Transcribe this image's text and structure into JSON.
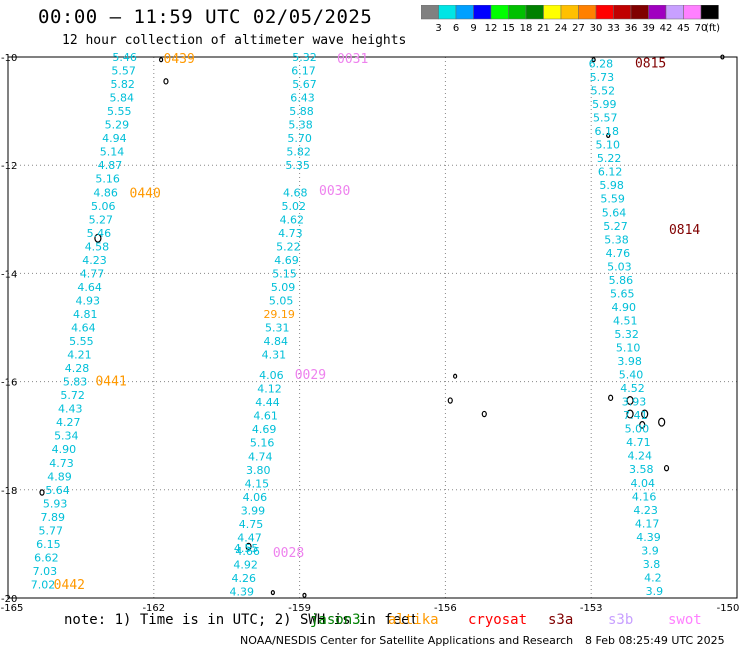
{
  "header": {
    "title": "00:00 – 11:59 UTC 02/05/2025",
    "subtitle": "12 hour collection of altimeter wave heights"
  },
  "legend": {
    "labels": [
      "3",
      "6",
      "9",
      "12",
      "15",
      "18",
      "21",
      "24",
      "27",
      "30",
      "33",
      "36",
      "39",
      "42",
      "45",
      "70"
    ],
    "unit": "(ft)",
    "colors": [
      "#808080",
      "#00e5e5",
      "#00a0ff",
      "#0000ff",
      "#00ff00",
      "#00c000",
      "#008000",
      "#ffff00",
      "#ffc000",
      "#ff8000",
      "#ff0000",
      "#c00000",
      "#800000",
      "#a000c0",
      "#c8a0ff",
      "#ff80ff",
      "#000000"
    ]
  },
  "map": {
    "lon_ticks": [
      "-165",
      "-162",
      "-159",
      "-156",
      "-153",
      "-150"
    ],
    "lat_ticks": [
      "-10",
      "-12",
      "-14",
      "-16",
      "-18",
      "-20"
    ]
  },
  "tracks": [
    {
      "name": "track-0439",
      "label": "0439",
      "color": "#ff9900",
      "label_pos": [
        -161.8,
        -10.02
      ],
      "points": [
        [
          -162.6,
          -10.0,
          "5.46"
        ],
        [
          -162.62,
          -10.25,
          "5.57"
        ],
        [
          -162.64,
          -10.5,
          "5.82"
        ],
        [
          -162.66,
          -10.75,
          "5.84"
        ],
        [
          -162.71,
          -11.0,
          "5.55"
        ],
        [
          -162.76,
          -11.25,
          "5.29"
        ],
        [
          -162.81,
          -11.5,
          "4.94"
        ],
        [
          -162.86,
          -11.75,
          "5.14"
        ],
        [
          -162.9,
          -12.0,
          "4.87"
        ],
        [
          -162.95,
          -12.25,
          "5.16"
        ],
        [
          -162.99,
          -12.5,
          "4.86"
        ]
      ]
    },
    {
      "name": "track-0440",
      "label": "0440",
      "color": "#ff9900",
      "label_pos": [
        -162.5,
        -12.5
      ],
      "points": [
        [
          -163.04,
          -12.75,
          "5.06"
        ],
        [
          -163.09,
          -13.0,
          "5.27"
        ],
        [
          -163.13,
          -13.25,
          "5.46"
        ],
        [
          -163.17,
          -13.5,
          "4.58"
        ],
        [
          -163.22,
          -13.75,
          "4.23"
        ],
        [
          -163.27,
          -14.0,
          "4.77"
        ],
        [
          -163.32,
          -14.25,
          "4.64"
        ],
        [
          -163.36,
          -14.5,
          "4.93"
        ],
        [
          -163.41,
          -14.75,
          "4.81"
        ],
        [
          -163.45,
          -15.0,
          "4.64"
        ],
        [
          -163.49,
          -15.25,
          "5.55"
        ],
        [
          -163.53,
          -15.5,
          "4.21"
        ],
        [
          -163.58,
          -15.75,
          "4.28"
        ],
        [
          -163.62,
          -16.0,
          "5.83"
        ]
      ]
    },
    {
      "name": "track-0441",
      "label": "0441",
      "color": "#ff9900",
      "label_pos": [
        -163.2,
        -15.98
      ],
      "points": [
        [
          -163.67,
          -16.25,
          "5.72"
        ],
        [
          -163.72,
          -16.5,
          "4.43"
        ],
        [
          -163.76,
          -16.75,
          "4.27"
        ],
        [
          -163.8,
          -17.0,
          "5.34"
        ],
        [
          -163.85,
          -17.25,
          "4.90"
        ],
        [
          -163.9,
          -17.5,
          "4.73"
        ],
        [
          -163.94,
          -17.75,
          "4.89"
        ],
        [
          -163.98,
          -18.0,
          "5.64"
        ],
        [
          -164.03,
          -18.25,
          "5.93"
        ],
        [
          -164.08,
          -18.5,
          "7.89"
        ],
        [
          -164.12,
          -18.75,
          "5.77"
        ],
        [
          -164.17,
          -19.0,
          "6.15"
        ],
        [
          -164.21,
          -19.25,
          "6.62"
        ],
        [
          -164.24,
          -19.5,
          "7.03"
        ],
        [
          -164.28,
          -19.75,
          "7.02"
        ]
      ]
    },
    {
      "name": "track-0442",
      "label": "0442",
      "color": "#ff9900",
      "label_pos": [
        -164.06,
        -19.74
      ],
      "points": []
    },
    {
      "name": "track-0031",
      "label": "0031",
      "color": "#ee82ee",
      "label_pos": [
        -158.23,
        -10.02
      ],
      "points": [
        [
          -158.9,
          -10.0,
          "5.32"
        ],
        [
          -158.92,
          -10.25,
          "6.17"
        ],
        [
          -158.9,
          -10.5,
          "5.67"
        ],
        [
          -158.94,
          -10.75,
          "6.43"
        ],
        [
          -158.96,
          -11.0,
          "5.88"
        ],
        [
          -158.98,
          -11.25,
          "5.38"
        ],
        [
          -159.0,
          -11.5,
          "5.70"
        ],
        [
          -159.02,
          -11.75,
          "5.82"
        ],
        [
          -159.04,
          -12.0,
          "5.35"
        ]
      ]
    },
    {
      "name": "track-0030",
      "label": "0030",
      "color": "#ee82ee",
      "label_pos": [
        -158.6,
        -12.46
      ],
      "points": [
        [
          -159.09,
          -12.5,
          "4.68"
        ],
        [
          -159.12,
          -12.75,
          "5.02"
        ],
        [
          -159.16,
          -13.0,
          "4.62"
        ],
        [
          -159.19,
          -13.25,
          "4.73"
        ],
        [
          -159.23,
          -13.5,
          "5.22"
        ],
        [
          -159.27,
          -13.75,
          "4.69"
        ],
        [
          -159.31,
          -14.0,
          "5.15"
        ],
        [
          -159.34,
          -14.25,
          "5.09"
        ],
        [
          -159.38,
          -14.5,
          "5.05"
        ],
        [
          -159.42,
          -14.75,
          "29.19"
        ],
        [
          -159.46,
          -15.0,
          "5.31"
        ],
        [
          -159.49,
          -15.25,
          "4.84"
        ],
        [
          -159.53,
          -15.5,
          "4.31"
        ]
      ]
    },
    {
      "name": "track-0029",
      "label": "0029",
      "color": "#ee82ee",
      "label_pos": [
        -159.1,
        -15.86
      ],
      "points": [
        [
          -159.58,
          -15.88,
          "4.06"
        ],
        [
          -159.62,
          -16.13,
          "4.12"
        ],
        [
          -159.66,
          -16.38,
          "4.44"
        ],
        [
          -159.7,
          -16.63,
          "4.61"
        ],
        [
          -159.73,
          -16.88,
          "4.69"
        ],
        [
          -159.77,
          -17.13,
          "5.16"
        ],
        [
          -159.81,
          -17.38,
          "4.74"
        ],
        [
          -159.85,
          -17.63,
          "3.80"
        ],
        [
          -159.88,
          -17.88,
          "4.15"
        ],
        [
          -159.92,
          -18.13,
          "4.06"
        ],
        [
          -159.96,
          -18.38,
          "3.99"
        ],
        [
          -160.0,
          -18.63,
          "4.75"
        ],
        [
          -160.03,
          -18.88,
          "4.47"
        ],
        [
          -160.07,
          -19.13,
          "4.66"
        ],
        [
          -160.11,
          -19.38,
          "4.92"
        ],
        [
          -160.15,
          -19.63,
          "4.26"
        ],
        [
          -160.19,
          -19.88,
          "4.39"
        ]
      ]
    },
    {
      "name": "track-0028",
      "label": "0028",
      "color": "#ee82ee",
      "label_pos": [
        -159.55,
        -19.15
      ],
      "points": [
        [
          -160.1,
          -19.08,
          "4.55"
        ]
      ]
    },
    {
      "name": "track-0815",
      "label": "0815",
      "color": "#800000",
      "label_pos": [
        -152.1,
        -10.1
      ],
      "points": [
        [
          -152.8,
          -10.12,
          "6.28"
        ],
        [
          -152.78,
          -10.37,
          "5.73"
        ],
        [
          -152.76,
          -10.62,
          "5.52"
        ],
        [
          -152.73,
          -10.87,
          "5.99"
        ],
        [
          -152.71,
          -11.12,
          "5.57"
        ],
        [
          -152.68,
          -11.37,
          "6.18"
        ],
        [
          -152.66,
          -11.62,
          "5.10"
        ],
        [
          -152.63,
          -11.87,
          "5.22"
        ],
        [
          -152.61,
          -12.12,
          "6.12"
        ],
        [
          -152.58,
          -12.37,
          "5.98"
        ],
        [
          -152.56,
          -12.62,
          "5.59"
        ],
        [
          -152.53,
          -12.87,
          "5.64"
        ]
      ]
    },
    {
      "name": "track-0814",
      "label": "0814",
      "color": "#800000",
      "label_pos": [
        -151.4,
        -13.18
      ],
      "points": [
        [
          -152.5,
          -13.12,
          "5.27"
        ],
        [
          -152.48,
          -13.37,
          "5.38"
        ],
        [
          -152.45,
          -13.62,
          "4.76"
        ],
        [
          -152.42,
          -13.87,
          "5.03"
        ],
        [
          -152.39,
          -14.12,
          "5.86"
        ],
        [
          -152.36,
          -14.37,
          "5.65"
        ],
        [
          -152.33,
          -14.62,
          "4.90"
        ],
        [
          -152.3,
          -14.87,
          "4.51"
        ],
        [
          -152.27,
          -15.12,
          "5.32"
        ],
        [
          -152.24,
          -15.37,
          "5.10"
        ],
        [
          -152.21,
          -15.62,
          "3.98"
        ],
        [
          -152.18,
          -15.87,
          "5.40"
        ],
        [
          -152.15,
          -16.12,
          "4.52"
        ],
        [
          -152.12,
          -16.37,
          "3.93"
        ],
        [
          -152.09,
          -16.62,
          "7.41"
        ],
        [
          -152.06,
          -16.87,
          "5.00"
        ],
        [
          -152.03,
          -17.12,
          "4.71"
        ],
        [
          -152.0,
          -17.37,
          "4.24"
        ],
        [
          -151.97,
          -17.62,
          "3.58"
        ],
        [
          -151.94,
          -17.87,
          "4.04"
        ],
        [
          -151.91,
          -18.12,
          "4.16"
        ],
        [
          -151.88,
          -18.37,
          "4.23"
        ],
        [
          -151.85,
          -18.62,
          "4.17"
        ],
        [
          -151.82,
          -18.87,
          "4.39"
        ],
        [
          -151.79,
          -19.12,
          "3.9"
        ],
        [
          -151.76,
          -19.37,
          "3.8"
        ],
        [
          -151.73,
          -19.62,
          "4.2"
        ],
        [
          -151.7,
          -19.87,
          "3.9"
        ]
      ]
    }
  ],
  "note": {
    "prefix": "note: 1) Time is in UTC; 2) SWH is in feet",
    "satellites": [
      {
        "name": "jason3",
        "label": "jason3",
        "color": "#008000"
      },
      {
        "name": "altika",
        "label": "altika",
        "color": "#ff9900"
      },
      {
        "name": "cryosat",
        "label": "cryosat",
        "color": "#ff0000"
      },
      {
        "name": "s3a",
        "label": "s3a",
        "color": "#800000"
      },
      {
        "name": "s3b",
        "label": "s3b",
        "color": "#c8a0ff"
      },
      {
        "name": "swot",
        "label": "swot",
        "color": "#ff80ff"
      }
    ]
  },
  "footer": {
    "credit": "NOAA/NESDIS Center for Satellite Applications and Research",
    "timestamp": "8 Feb 08:25:49 UTC 2025"
  },
  "track_point_color": "#00bfd8"
}
